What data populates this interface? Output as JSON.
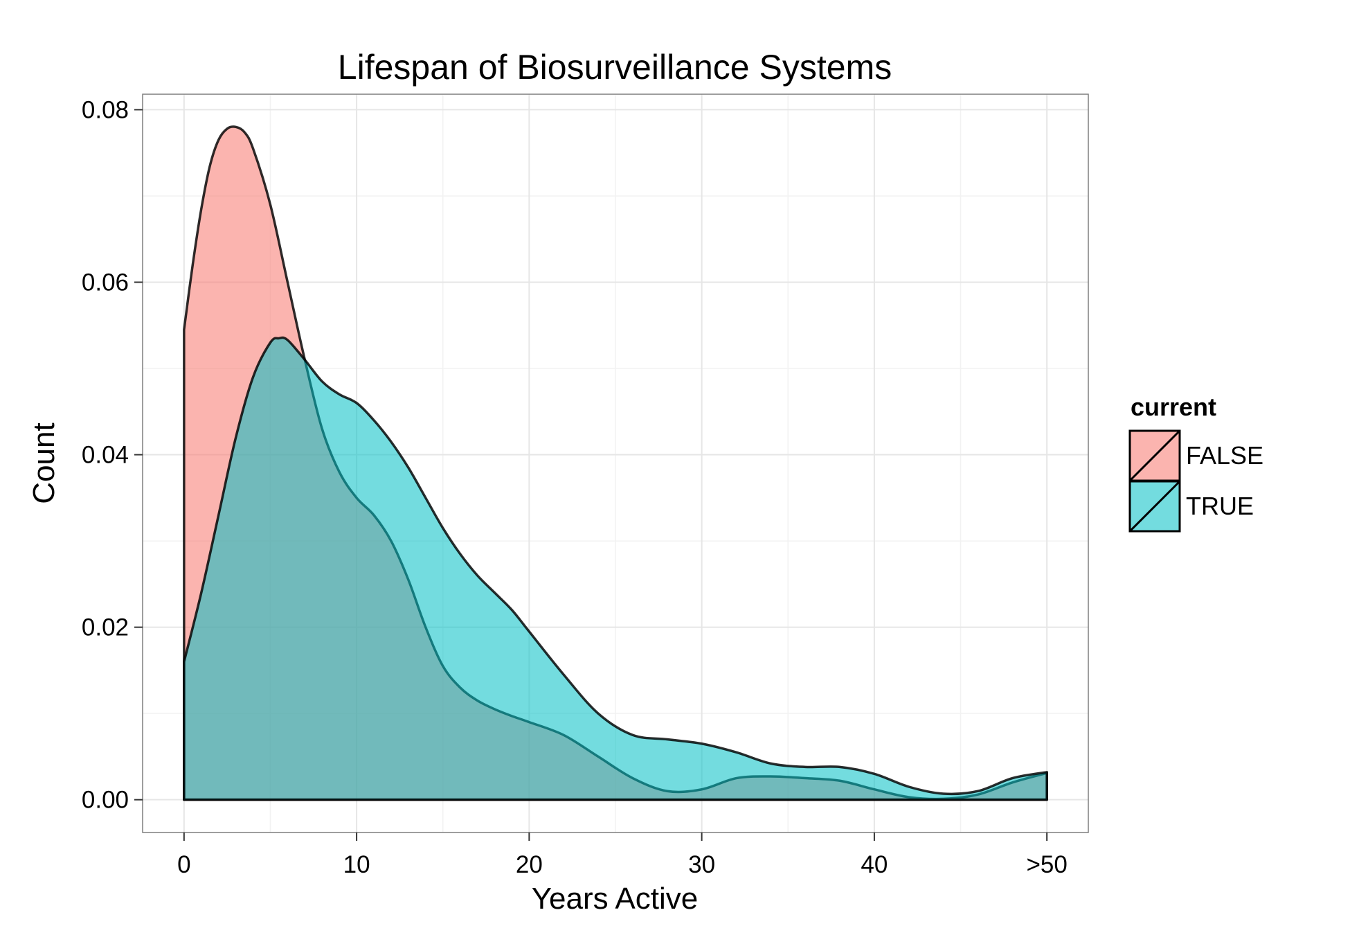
{
  "chart_data": {
    "type": "area",
    "title": "Lifespan of Biosurveillance Systems",
    "xlabel": "Years Active",
    "ylabel": "Count",
    "xlim": [
      -2.4,
      52.4
    ],
    "ylim": [
      -0.0038,
      0.0818
    ],
    "x_ticks": [
      0,
      10,
      20,
      30,
      40,
      50
    ],
    "x_tick_labels": [
      "0",
      "10",
      "20",
      "30",
      "40",
      ">50"
    ],
    "y_ticks": [
      0,
      0.02,
      0.04,
      0.06,
      0.08
    ],
    "y_tick_labels": [
      "0.00",
      "0.02",
      "0.04",
      "0.06",
      "0.08"
    ],
    "grid": true,
    "legend": {
      "title": "current",
      "position": "right",
      "entries": [
        "FALSE",
        "TRUE"
      ]
    },
    "colors": {
      "FALSE": "#F8766D",
      "TRUE": "#00BFC4",
      "panel_border": "#7f7f7f",
      "grid_major": "#e6e6e6",
      "grid_minor": "#f2f2f2"
    },
    "fill_opacity": 0.55,
    "series": [
      {
        "name": "FALSE",
        "x": [
          0,
          0.5,
          1,
          1.5,
          2,
          2.5,
          3,
          3.5,
          4,
          5,
          6,
          7,
          8,
          9,
          10,
          11,
          12,
          13,
          14,
          15,
          16,
          17,
          18,
          19,
          20,
          22,
          24,
          26,
          28,
          30,
          32,
          34,
          36,
          38,
          40,
          42,
          44,
          46,
          48,
          50
        ],
        "y": [
          0.0545,
          0.062,
          0.0685,
          0.0735,
          0.0765,
          0.0778,
          0.078,
          0.0774,
          0.0755,
          0.069,
          0.06,
          0.051,
          0.043,
          0.038,
          0.035,
          0.033,
          0.03,
          0.0255,
          0.02,
          0.0155,
          0.013,
          0.0115,
          0.0105,
          0.0097,
          0.009,
          0.0075,
          0.005,
          0.0025,
          0.001,
          0.0012,
          0.0025,
          0.0027,
          0.0025,
          0.0022,
          0.0012,
          0.0003,
          0.0001,
          0.0006,
          0.002,
          0.0031
        ]
      },
      {
        "name": "TRUE",
        "x": [
          0,
          1,
          2,
          3,
          4,
          5,
          5.5,
          6,
          7,
          8,
          9,
          10,
          11,
          12,
          13,
          14,
          15,
          16,
          17,
          18,
          19,
          20,
          22,
          24,
          26,
          28,
          30,
          32,
          34,
          36,
          38,
          40,
          42,
          44,
          46,
          48,
          50
        ],
        "y": [
          0.016,
          0.024,
          0.033,
          0.042,
          0.049,
          0.053,
          0.0535,
          0.0533,
          0.051,
          0.0485,
          0.047,
          0.046,
          0.044,
          0.0415,
          0.0385,
          0.035,
          0.0315,
          0.0285,
          0.026,
          0.024,
          0.022,
          0.0195,
          0.0145,
          0.01,
          0.0075,
          0.007,
          0.0065,
          0.0055,
          0.0042,
          0.0038,
          0.0038,
          0.003,
          0.0015,
          0.0007,
          0.001,
          0.0025,
          0.0032
        ]
      }
    ]
  }
}
